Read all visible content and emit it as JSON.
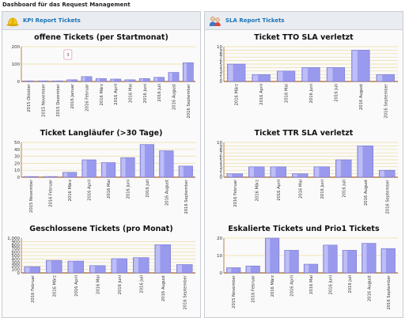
{
  "page": {
    "title": "Dashboard für das Request Management"
  },
  "panels": [
    {
      "title": "KPI Report Tickets",
      "icon": "hardhat-icon"
    },
    {
      "title": "SLA Report Tickets",
      "icon": "users-icon"
    }
  ],
  "colors": {
    "bar": "#9999ee",
    "bar_edge": "#7777cc",
    "grid": "#f0d9a0",
    "axis": "#aa6622"
  },
  "chart_data": [
    {
      "type": "bar",
      "title": "offene Tickets (per Startmonat)",
      "categories": [
        "2015 Oktober",
        "2015 November",
        "2015 Dezember",
        "2016 Januar",
        "2016 Februar",
        "2016 März",
        "2016 April",
        "2016 Mai",
        "2016 Juni",
        "2016 Juli",
        "2016 August",
        "2016 September"
      ],
      "values": [
        2,
        3,
        3,
        10,
        28,
        17,
        14,
        10,
        17,
        24,
        52,
        108
      ],
      "yticks": [
        0,
        100,
        200
      ],
      "ylim": [
        0,
        200
      ],
      "tooltip": "3"
    },
    {
      "type": "bar",
      "title": "Ticket Langläufer (>30 Tage)",
      "categories": [
        "2015 November",
        "2016 Februar",
        "2016 März",
        "2016 April",
        "2016 Mai",
        "2016 Juni",
        "2016 Juli",
        "2016 August",
        "2016 September"
      ],
      "values": [
        1,
        1,
        7,
        25,
        21,
        28,
        47,
        38,
        16
      ],
      "yticks": [
        0,
        10,
        20,
        30,
        40,
        50
      ],
      "ylim": [
        0,
        50
      ]
    },
    {
      "type": "bar",
      "title": "Geschlossene Tickets (pro Monat)",
      "categories": [
        "2016 Februar",
        "2016 März",
        "2016 April",
        "2016 Mai",
        "2016 Juni",
        "2016 Juli",
        "2016 August",
        "2016 September"
      ],
      "values": [
        180,
        360,
        340,
        210,
        410,
        440,
        810,
        240
      ],
      "yticks": [
        0,
        100,
        200,
        300,
        400,
        500,
        600,
        700,
        800,
        900
      ],
      "ytick_labels": [
        "0",
        "100",
        "200",
        "300",
        "400",
        "500",
        "600",
        "700",
        "800",
        "900"
      ],
      "ytop_label": "1,000",
      "ylim": [
        0,
        1000
      ]
    },
    {
      "type": "bar",
      "title": "Ticket TTO SLA verletzt",
      "categories": [
        "2016 März",
        "2016 April",
        "2016 Mai",
        "2016 Juni",
        "2016 Juli",
        "2016 August",
        "2016 September"
      ],
      "values": [
        5,
        2,
        3,
        4,
        4,
        9,
        2
      ],
      "yticks": [
        0,
        1,
        2,
        3,
        4,
        5,
        6,
        7,
        8,
        9,
        10
      ],
      "ylim": [
        0,
        10
      ]
    },
    {
      "type": "bar",
      "title": "Ticket TTR SLA verletzt",
      "categories": [
        "2016 Februar",
        "2016 März",
        "2016 April",
        "2016 Mai",
        "2016 Juni",
        "2016 Juli",
        "2016 August",
        "2016 September"
      ],
      "values": [
        1,
        3,
        3,
        1,
        3,
        5,
        9,
        2
      ],
      "yticks": [
        0,
        1,
        2,
        3,
        4,
        5,
        6,
        7,
        8,
        9,
        10
      ],
      "ylim": [
        0,
        10
      ]
    },
    {
      "type": "bar",
      "title": "Eskalierte Tickets und Prio1 Tickets",
      "categories": [
        "2015 November",
        "2016 Februar",
        "2016 März",
        "2016 April",
        "2016 Mai",
        "2016 Juni",
        "2016 Juli",
        "2016 August",
        "2016 September"
      ],
      "values": [
        3,
        4,
        20,
        13,
        5,
        16,
        13,
        17,
        14
      ],
      "yticks": [
        0,
        10,
        20
      ],
      "ylim": [
        0,
        20
      ]
    }
  ]
}
